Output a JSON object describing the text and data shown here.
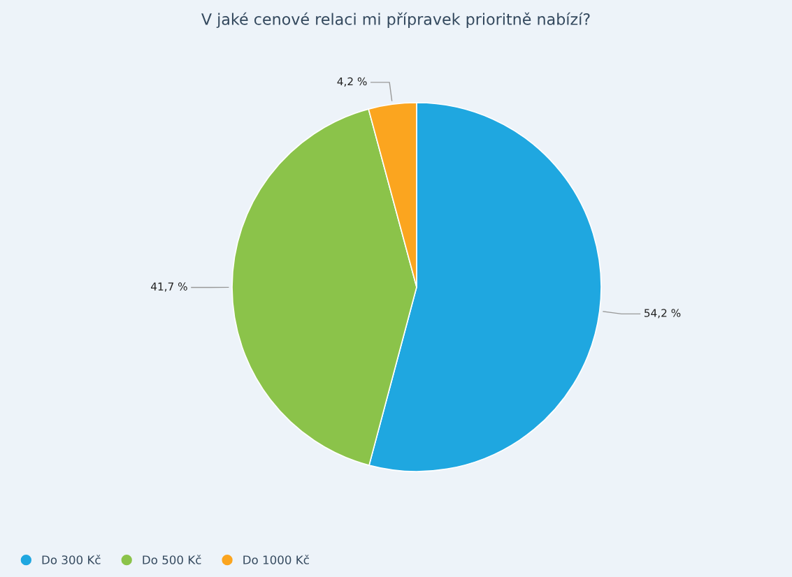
{
  "chart_data": {
    "type": "pie",
    "title": "V jaké cenové relaci mi přípravek prioritně nabízí?",
    "categories": [
      "Do 300 Kč",
      "Do 500 Kč",
      "Do 1000 Kč"
    ],
    "values": [
      54.2,
      41.7,
      4.2
    ],
    "colors": [
      "#1fa7e0",
      "#8bc34a",
      "#fba51f"
    ],
    "value_labels": [
      "54,2 %",
      "41,7 %",
      "4,2 %"
    ],
    "legend": "bottom left"
  }
}
